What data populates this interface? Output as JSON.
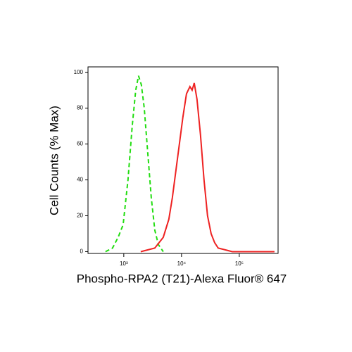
{
  "chart_data": {
    "type": "line",
    "x_label": "Phospho-RPA2 (T21)-Alexa Fluor® 647",
    "y_label": "Cell Counts (% Max)",
    "xscale": "log",
    "xlim": [
      240,
      470000
    ],
    "ylim": [
      -1,
      103
    ],
    "xticks": [
      {
        "value": 1000,
        "label": "10³"
      },
      {
        "value": 10000,
        "label": "10⁴"
      },
      {
        "value": 100000,
        "label": "10⁵"
      }
    ],
    "yticks": [
      0,
      20,
      40,
      60,
      80,
      100
    ],
    "series": [
      {
        "color": "#22dd11",
        "dash": true,
        "x": [
          482,
          638,
          798,
          973,
          1183,
          1400,
          1611,
          1803,
          2018,
          2259,
          2600,
          2992,
          3441,
          3963,
          4819
        ],
        "values": [
          0,
          2,
          8,
          15,
          40,
          70,
          90,
          98,
          93,
          80,
          55,
          30,
          12,
          4,
          0
        ]
      },
      {
        "color": "#ee2222",
        "dash": false,
        "x": [
          1963,
          3441,
          4819,
          6026,
          6934,
          7980,
          9183,
          10570,
          12170,
          14000,
          15240,
          16600,
          18540,
          21330,
          24550,
          28250,
          32510,
          37410,
          43050,
          57020,
          75510,
          407400
        ],
        "values": [
          0,
          2,
          8,
          18,
          30,
          45,
          60,
          75,
          88,
          92,
          90,
          94,
          85,
          65,
          40,
          20,
          10,
          5,
          2,
          1,
          0,
          0
        ]
      }
    ]
  }
}
